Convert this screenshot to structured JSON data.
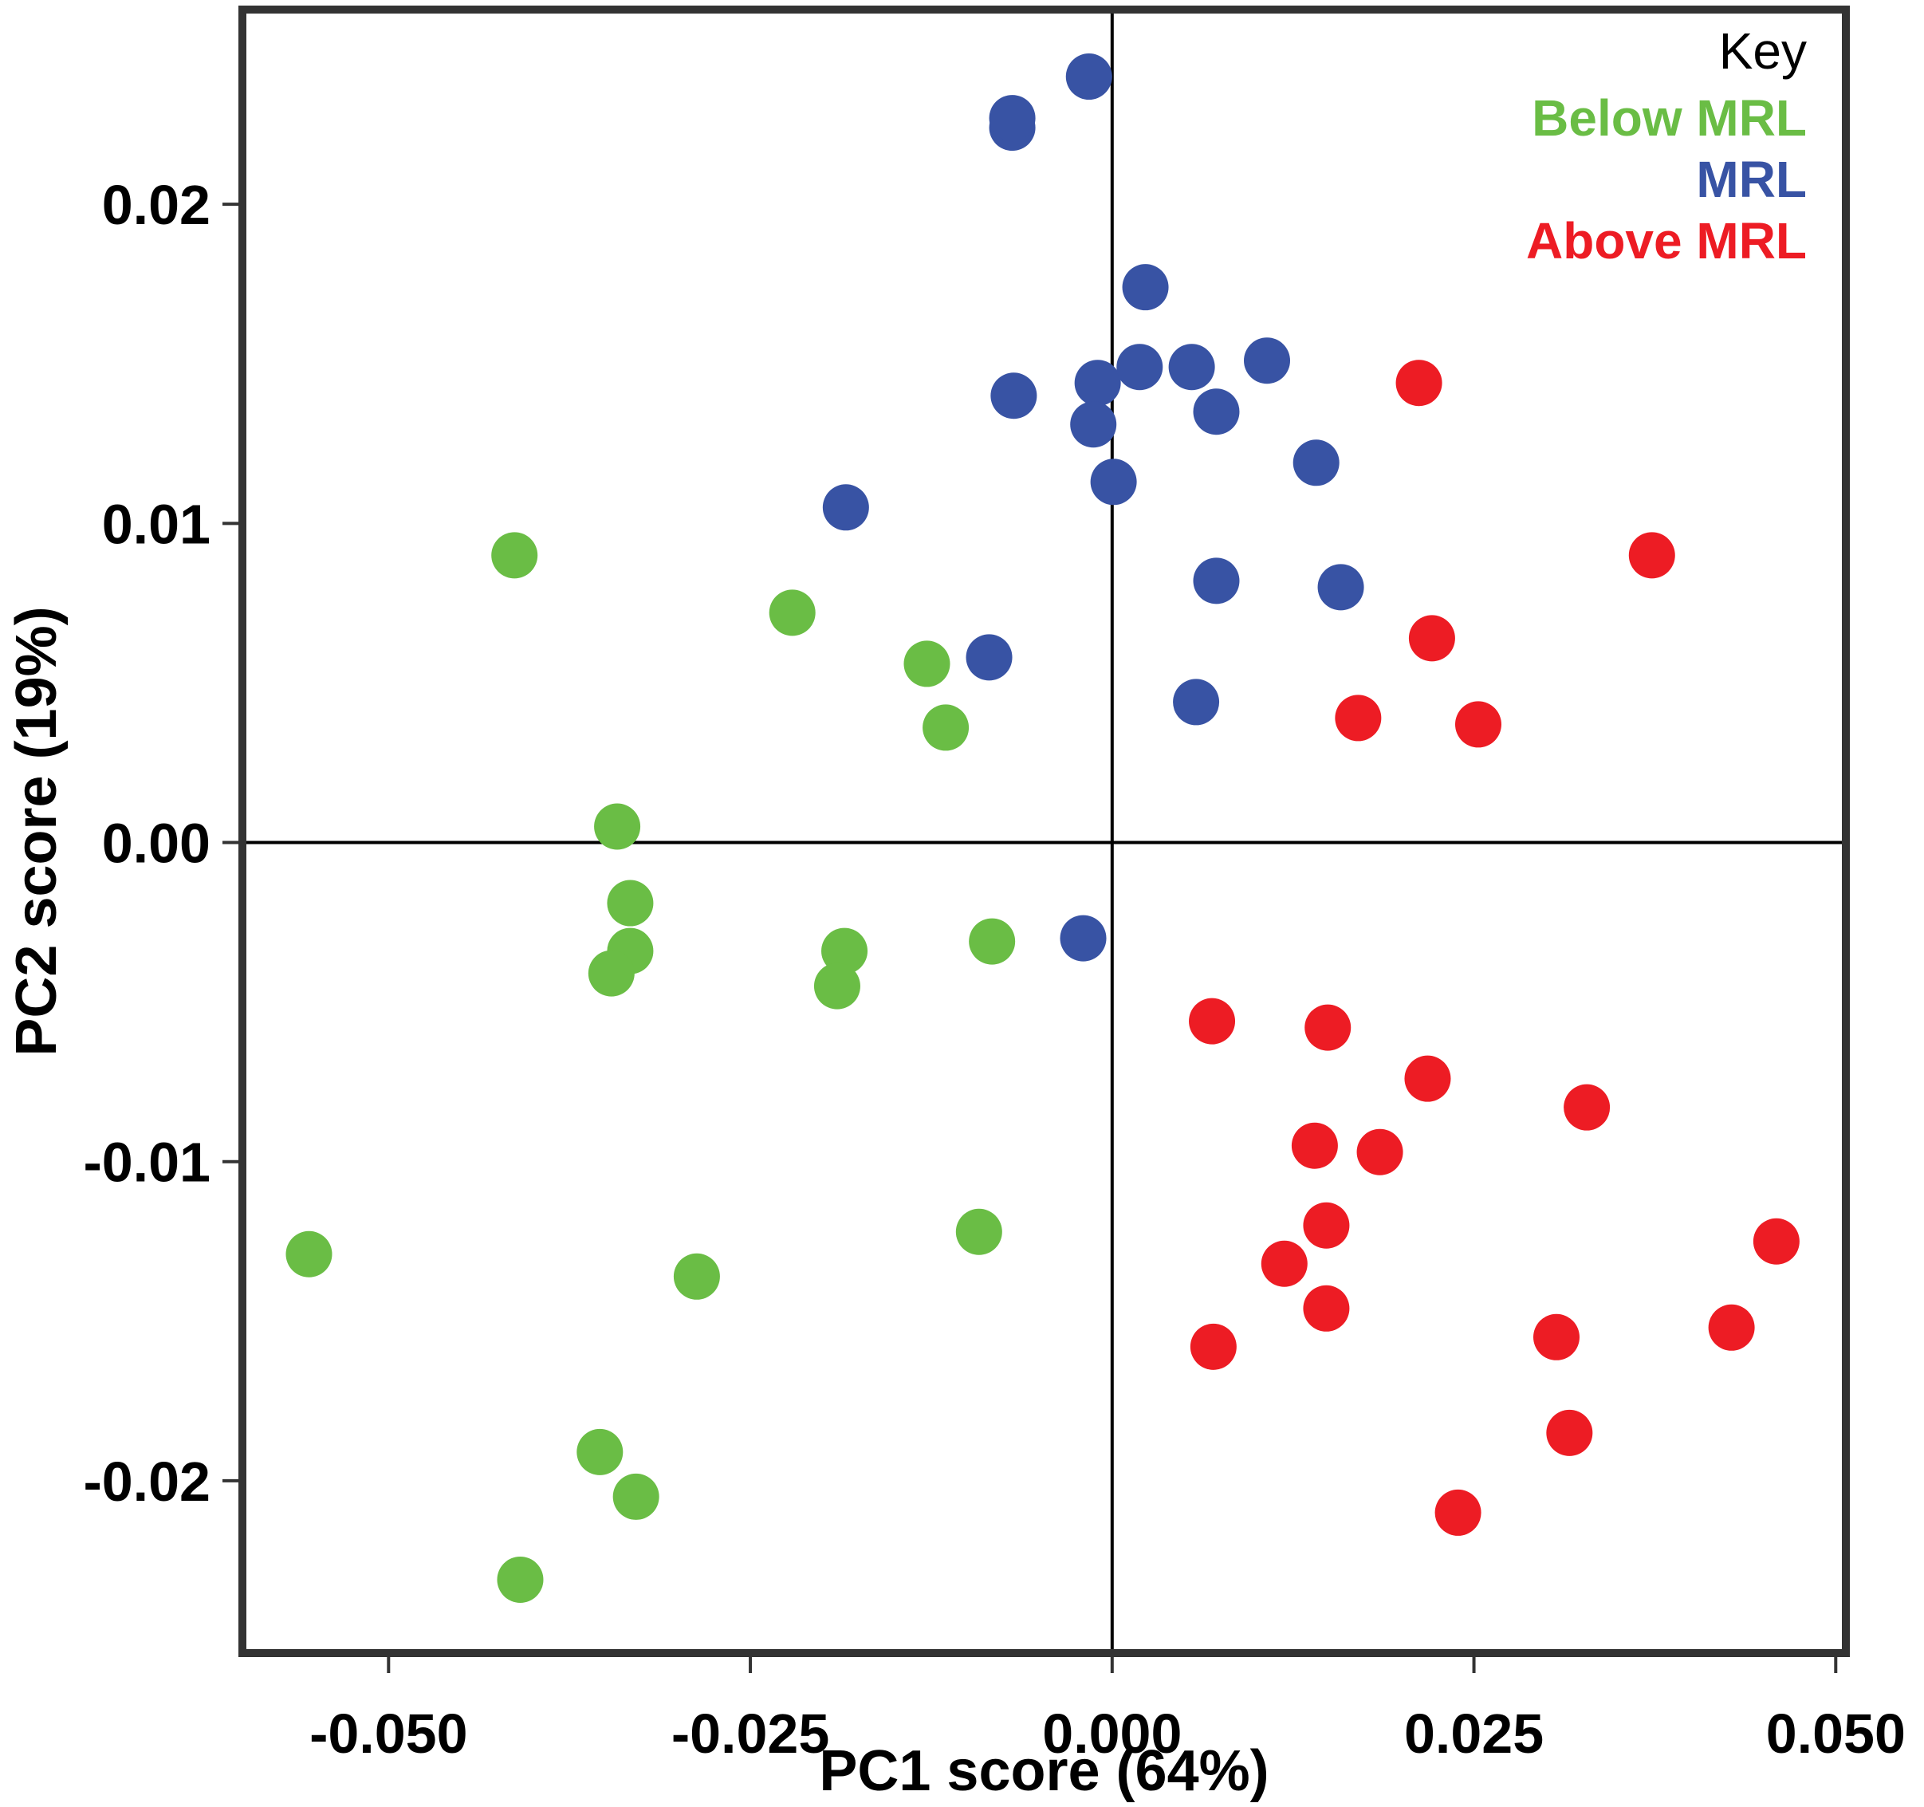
{
  "chart_data": {
    "type": "scatter",
    "title": "",
    "xlabel": "PC1 score (64%)",
    "ylabel": "PC2 score (19%)",
    "xlim": [
      -0.0601,
      0.0507
    ],
    "ylim": [
      -0.0254,
      0.0261
    ],
    "x_ticks": [
      -0.05,
      -0.025,
      0.0,
      0.025,
      0.05
    ],
    "x_tick_labels": [
      "-0.050",
      "-0.025",
      "0.000",
      "0.025",
      "0.050"
    ],
    "y_ticks": [
      0.02,
      0.01,
      0.0,
      -0.01,
      -0.02
    ],
    "y_tick_labels": [
      "0.02",
      "0.01",
      "0.00",
      "-0.01",
      "-0.02"
    ],
    "zero_lines": true,
    "grid": false,
    "legend": {
      "title": "Key",
      "placement": "top-right"
    },
    "series": [
      {
        "name": "Below MRL",
        "color": "#6abd45",
        "points": [
          [
            -0.0413,
            0.009
          ],
          [
            -0.0221,
            0.0072
          ],
          [
            -0.0128,
            0.0056
          ],
          [
            -0.0115,
            0.0036
          ],
          [
            -0.0342,
            0.0005
          ],
          [
            -0.0333,
            -0.0019
          ],
          [
            -0.0333,
            -0.0034
          ],
          [
            -0.0346,
            -0.0041
          ],
          [
            -0.0185,
            -0.0034
          ],
          [
            -0.019,
            -0.0045
          ],
          [
            -0.0083,
            -0.0031
          ],
          [
            -0.0092,
            -0.0122
          ],
          [
            -0.0555,
            -0.0129
          ],
          [
            -0.0287,
            -0.0136
          ],
          [
            -0.0354,
            -0.0191
          ],
          [
            -0.0329,
            -0.0205
          ],
          [
            -0.0409,
            -0.0231
          ]
        ]
      },
      {
        "name": "MRL",
        "color": "#3853a4",
        "points": [
          [
            -0.0016,
            0.024
          ],
          [
            -0.0069,
            0.0224
          ],
          [
            -0.0069,
            0.0227
          ],
          [
            0.0023,
            0.0174
          ],
          [
            -0.001,
            0.0144
          ],
          [
            0.0019,
            0.0149
          ],
          [
            0.0055,
            0.0149
          ],
          [
            0.0107,
            0.0151
          ],
          [
            -0.0068,
            0.014
          ],
          [
            0.0072,
            0.0135
          ],
          [
            -0.0013,
            0.0131
          ],
          [
            0.0001,
            0.0113
          ],
          [
            0.0141,
            0.0119
          ],
          [
            -0.0184,
            0.0105
          ],
          [
            0.0072,
            0.0082
          ],
          [
            0.0158,
            0.008
          ],
          [
            -0.0085,
            0.0058
          ],
          [
            0.0058,
            0.0044
          ],
          [
            -0.002,
            -0.003
          ]
        ]
      },
      {
        "name": "Above MRL",
        "color": "#ed1c24",
        "points": [
          [
            0.0212,
            0.0144
          ],
          [
            0.0373,
            0.009
          ],
          [
            0.0221,
            0.0064
          ],
          [
            0.017,
            0.0039
          ],
          [
            0.0253,
            0.0037
          ],
          [
            0.0069,
            -0.0056
          ],
          [
            0.0149,
            -0.0058
          ],
          [
            0.0218,
            -0.0074
          ],
          [
            0.0328,
            -0.0083
          ],
          [
            0.014,
            -0.0095
          ],
          [
            0.0185,
            -0.0097
          ],
          [
            0.0148,
            -0.012
          ],
          [
            0.0119,
            -0.0132
          ],
          [
            0.0148,
            -0.0146
          ],
          [
            0.007,
            -0.0158
          ],
          [
            0.0307,
            -0.0155
          ],
          [
            0.0428,
            -0.0152
          ],
          [
            0.0459,
            -0.0125
          ],
          [
            0.0316,
            -0.0185
          ],
          [
            0.0239,
            -0.021
          ]
        ]
      }
    ]
  }
}
